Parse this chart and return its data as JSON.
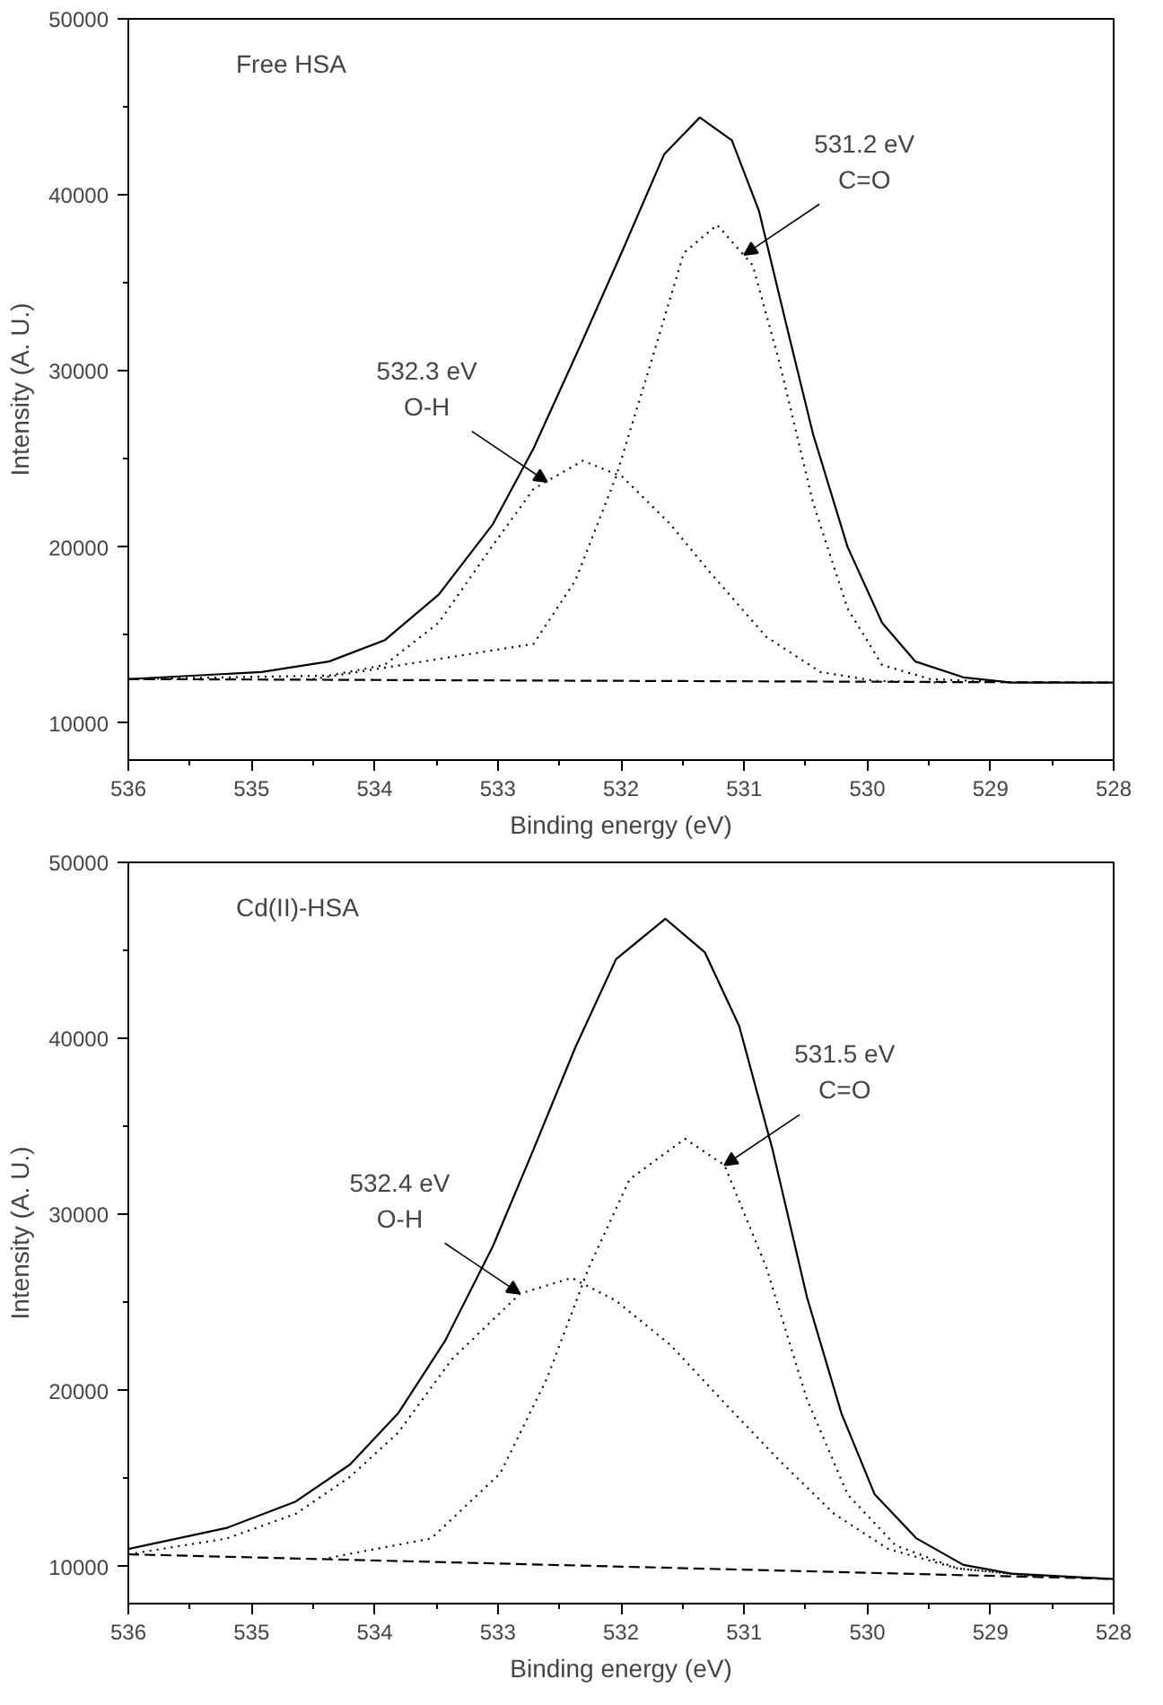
{
  "chart_data": [
    {
      "type": "line",
      "title": "Free HSA",
      "xlabel": "Binding energy (eV)",
      "ylabel": "Intensity (A. U.)",
      "xlim": [
        536,
        528
      ],
      "ylim": [
        7900,
        50000
      ],
      "xticks": [
        536,
        {
          "value": 535.5,
          "label": null
        },
        535,
        {
          "value": 534.5,
          "label": null
        },
        534,
        {
          "value": 533.5,
          "label": null
        },
        533,
        {
          "value": 532.5,
          "label": null
        },
        532,
        {
          "value": 531.5,
          "label": null
        },
        531,
        {
          "value": 530.5,
          "label": null
        },
        530,
        {
          "value": 529.5,
          "label": null
        },
        529,
        {
          "value": 528.5,
          "label": null
        },
        528
      ],
      "yticks": [
        10000,
        {
          "value": 15000,
          "label": null
        },
        20000,
        {
          "value": 25000,
          "label": null
        },
        30000,
        {
          "value": 35000,
          "label": null
        },
        40000,
        {
          "value": 45000,
          "label": null
        },
        50000
      ],
      "grid": false,
      "series": [
        {
          "color": "#000000",
          "line_style": "solid",
          "x": [
            536,
            534.92,
            534.37,
            533.92,
            533.48,
            533.04,
            532.71,
            532.32,
            531.99,
            531.65,
            531.36,
            531.1,
            530.88,
            530.66,
            530.44,
            530.16,
            529.88,
            529.61,
            529.22,
            528.83,
            528
          ],
          "values": [
            12500,
            12900,
            13500,
            14700,
            17300,
            21300,
            25600,
            31600,
            36800,
            42300,
            44400,
            43100,
            39100,
            32700,
            26400,
            20000,
            15700,
            13500,
            12600,
            12300,
            12300
          ]
        },
        {
          "color": "#000000",
          "line_style": "dotted",
          "x": [
            534.5,
            532.71,
            532.37,
            532.04,
            531.76,
            531.49,
            531.22,
            530.93,
            530.71,
            530.44,
            530.16,
            529.88,
            529.49,
            528.83
          ],
          "values": [
            12500,
            14500,
            18100,
            24000,
            30400,
            36700,
            38300,
            36000,
            30400,
            22500,
            16500,
            13300,
            12500,
            12300
          ]
        },
        {
          "color": "#000000",
          "line_style": "dotted",
          "x": [
            536,
            534.37,
            533.92,
            533.48,
            533.04,
            532.71,
            532.31,
            531.99,
            531.6,
            531.27,
            530.82,
            530.38,
            529.94,
            529.38
          ],
          "values": [
            12500,
            12700,
            13300,
            15700,
            20100,
            23300,
            24900,
            24000,
            21300,
            18500,
            14900,
            12900,
            12400,
            12300
          ]
        },
        {
          "color": "#000000",
          "line_style": "dashed",
          "x": [
            536,
            528
          ],
          "values": [
            12500,
            12300
          ]
        }
      ],
      "annotations": [
        {
          "text": "531.2 eV\nC=O",
          "x": 531.0,
          "y": 36600
        },
        {
          "text": "532.3 eV\nO-H",
          "x": 532.6,
          "y": 23700
        }
      ]
    },
    {
      "type": "line",
      "title": "Cd(II)-HSA",
      "xlabel": "Binding energy (eV)",
      "ylabel": "Intensity (A. U.)",
      "xlim": [
        536,
        528
      ],
      "ylim": [
        7900,
        50000
      ],
      "xticks": [
        536,
        {
          "value": 535.5,
          "label": null
        },
        535,
        {
          "value": 534.5,
          "label": null
        },
        534,
        {
          "value": 533.5,
          "label": null
        },
        533,
        {
          "value": 532.5,
          "label": null
        },
        532,
        {
          "value": 531.5,
          "label": null
        },
        531,
        {
          "value": 530.5,
          "label": null
        },
        530,
        {
          "value": 529.5,
          "label": null
        },
        529,
        {
          "value": 528.5,
          "label": null
        },
        528
      ],
      "yticks": [
        10000,
        {
          "value": 15000,
          "label": null
        },
        20000,
        {
          "value": 25000,
          "label": null
        },
        30000,
        {
          "value": 35000,
          "label": null
        },
        40000,
        {
          "value": 45000,
          "label": null
        },
        50000
      ],
      "grid": false,
      "series": [
        {
          "color": "#000000",
          "line_style": "solid",
          "x": [
            536,
            535.2,
            534.64,
            534.2,
            533.81,
            533.43,
            533.04,
            532.71,
            532.37,
            532.04,
            531.64,
            531.32,
            531.04,
            530.77,
            530.49,
            530.21,
            529.94,
            529.6,
            529.22,
            528.83,
            528
          ],
          "values": [
            11000,
            12200,
            13700,
            15800,
            18700,
            22800,
            28200,
            33700,
            39500,
            44500,
            46800,
            44900,
            40700,
            33700,
            25300,
            18700,
            14100,
            11600,
            10100,
            9600,
            9300
          ]
        },
        {
          "color": "#000000",
          "line_style": "dotted",
          "x": [
            534.37,
            533.54,
            532.98,
            532.6,
            532.26,
            531.93,
            531.48,
            531.16,
            530.82,
            530.49,
            530.16,
            529.77,
            529.27,
            528.55
          ],
          "values": [
            10500,
            11600,
            15300,
            20700,
            27000,
            32000,
            34300,
            32800,
            27000,
            19500,
            14100,
            11200,
            9900,
            9400
          ]
        },
        {
          "color": "#000000",
          "line_style": "dotted",
          "x": [
            536,
            535.2,
            534.64,
            534.2,
            533.81,
            533.37,
            532.82,
            532.4,
            532.04,
            531.6,
            531.16,
            530.71,
            530.27,
            529.83,
            529.27,
            528.55
          ],
          "values": [
            10700,
            11600,
            13000,
            15100,
            17600,
            21800,
            25500,
            26400,
            25100,
            22600,
            19300,
            16000,
            13000,
            11000,
            9900,
            9400
          ]
        },
        {
          "color": "#000000",
          "line_style": "dashed",
          "x": [
            536,
            528
          ],
          "values": [
            10700,
            9300
          ]
        }
      ],
      "annotations": [
        {
          "text": "531.5 eV\nC=O",
          "x": 531.16,
          "y": 32800
        },
        {
          "text": "532.4 eV\nO-H",
          "x": 532.82,
          "y": 25500
        }
      ]
    }
  ]
}
